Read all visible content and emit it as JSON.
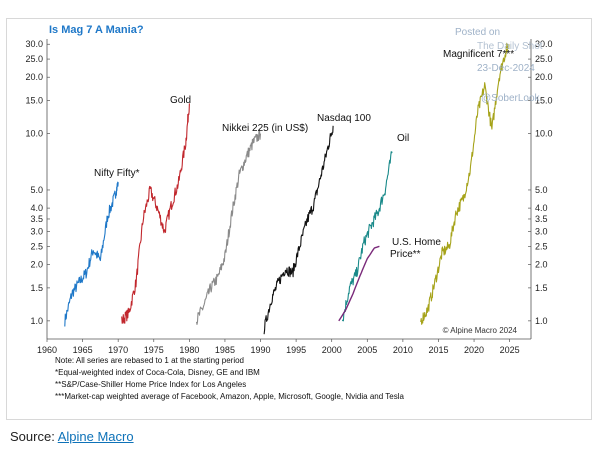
{
  "chart_data": {
    "type": "line",
    "title": "Is Mag 7 A Mania?",
    "yscale": "log",
    "ylim": [
      0.8,
      32
    ],
    "xlim": [
      1960,
      2028
    ],
    "yticks": [
      1.0,
      1.5,
      2.0,
      2.5,
      3.0,
      3.5,
      4.0,
      5.0,
      10.0,
      15.0,
      20.0,
      25.0,
      30.0
    ],
    "ytick_labels": [
      "1.0",
      "1.5",
      "2.0",
      "2.5",
      "3.0",
      "3.5",
      "4.0",
      "5.0",
      "10.0",
      "15.0",
      "20.0",
      "25.0",
      "30.0"
    ],
    "xticks": [
      1960,
      1965,
      1970,
      1975,
      1980,
      1985,
      1990,
      1995,
      2000,
      2005,
      2010,
      2015,
      2020,
      2025
    ],
    "series": [
      {
        "name": "Nifty Fifty*",
        "label": "Nifty Fifty*",
        "color": "#1f78c8",
        "points": [
          [
            1962.5,
            1.0
          ],
          [
            1963.5,
            1.4
          ],
          [
            1964.5,
            1.6
          ],
          [
            1965.5,
            1.8
          ],
          [
            1966.5,
            2.4
          ],
          [
            1967.5,
            2.1
          ],
          [
            1968.5,
            3.6
          ],
          [
            1969.5,
            4.6
          ],
          [
            1970.0,
            5.5
          ]
        ]
      },
      {
        "name": "Gold",
        "label": "Gold",
        "color": "#c1272d",
        "points": [
          [
            1970.5,
            1.0
          ],
          [
            1971.5,
            1.1
          ],
          [
            1972.5,
            1.6
          ],
          [
            1973.5,
            3.5
          ],
          [
            1974.5,
            5.0
          ],
          [
            1975.5,
            4.0
          ],
          [
            1976.5,
            3.0
          ],
          [
            1977.5,
            4.2
          ],
          [
            1978.5,
            5.5
          ],
          [
            1979.5,
            9.0
          ],
          [
            1980.0,
            14.5
          ]
        ]
      },
      {
        "name": "Nikkei 225 (in US$)",
        "label": "Nikkei 225 (in US$)",
        "color": "#8a8a8a",
        "points": [
          [
            1981.0,
            1.0
          ],
          [
            1982.0,
            1.2
          ],
          [
            1983.0,
            1.5
          ],
          [
            1984.0,
            1.7
          ],
          [
            1985.0,
            2.2
          ],
          [
            1986.0,
            3.8
          ],
          [
            1987.0,
            6.0
          ],
          [
            1988.0,
            7.5
          ],
          [
            1989.0,
            9.0
          ],
          [
            1990.0,
            10.0
          ]
        ]
      },
      {
        "name": "Nasdaq 100",
        "label": "Nasdaq 100",
        "color": "#111111",
        "points": [
          [
            1990.5,
            0.9
          ],
          [
            1991.5,
            1.3
          ],
          [
            1992.5,
            1.6
          ],
          [
            1993.5,
            1.9
          ],
          [
            1994.5,
            1.8
          ],
          [
            1995.5,
            2.5
          ],
          [
            1996.5,
            3.4
          ],
          [
            1997.5,
            4.2
          ],
          [
            1998.5,
            6.0
          ],
          [
            1999.5,
            8.5
          ],
          [
            2000.2,
            11.0
          ]
        ]
      },
      {
        "name": "Oil",
        "label": "Oil",
        "color": "#1a8a8a",
        "points": [
          [
            2001.5,
            1.0
          ],
          [
            2002.5,
            1.5
          ],
          [
            2003.5,
            1.8
          ],
          [
            2004.5,
            2.6
          ],
          [
            2005.5,
            3.2
          ],
          [
            2006.5,
            3.8
          ],
          [
            2007.5,
            5.0
          ],
          [
            2008.5,
            8.0
          ]
        ]
      },
      {
        "name": "U.S. Home Price**",
        "label": "U.S. Home Price**",
        "color": "#7a2a7a",
        "points": [
          [
            2001.0,
            1.0
          ],
          [
            2002.0,
            1.15
          ],
          [
            2003.0,
            1.4
          ],
          [
            2004.0,
            1.75
          ],
          [
            2005.0,
            2.15
          ],
          [
            2006.0,
            2.45
          ],
          [
            2006.7,
            2.5
          ]
        ]
      },
      {
        "name": "Magnificent 7***",
        "label": "Magnificent 7***",
        "color": "#a6a31a",
        "points": [
          [
            2012.5,
            1.0
          ],
          [
            2013.5,
            1.15
          ],
          [
            2014.5,
            1.6
          ],
          [
            2015.5,
            2.3
          ],
          [
            2016.5,
            2.5
          ],
          [
            2017.5,
            3.8
          ],
          [
            2018.5,
            4.5
          ],
          [
            2019.5,
            6.5
          ],
          [
            2020.5,
            13.0
          ],
          [
            2021.5,
            18.0
          ],
          [
            2022.5,
            10.5
          ],
          [
            2023.5,
            20.0
          ],
          [
            2024.5,
            28.0
          ],
          [
            2024.9,
            30.0
          ]
        ]
      }
    ],
    "notes": [
      "Note: All series are rebased to 1 at the starting period",
      "*Equal-weighted index of Coca-Cola, Disney, GE and IBM",
      "**S&P/Case-Shiller Home Price Index for Los Angeles",
      "***Market-cap weighted average of Facebook, Amazon, Apple, Microsoft, Google, Nvidia and Tesla"
    ],
    "copyright": "© Alpine Macro 2024",
    "watermark": [
      "Posted on",
      "The Daily Shot",
      "23-Dec-2024",
      "@SoberLook"
    ]
  },
  "source": {
    "prefix": "Source: ",
    "link_text": "Alpine Macro"
  },
  "colors": {
    "title": "#1f78c8",
    "axis": "#333333"
  }
}
